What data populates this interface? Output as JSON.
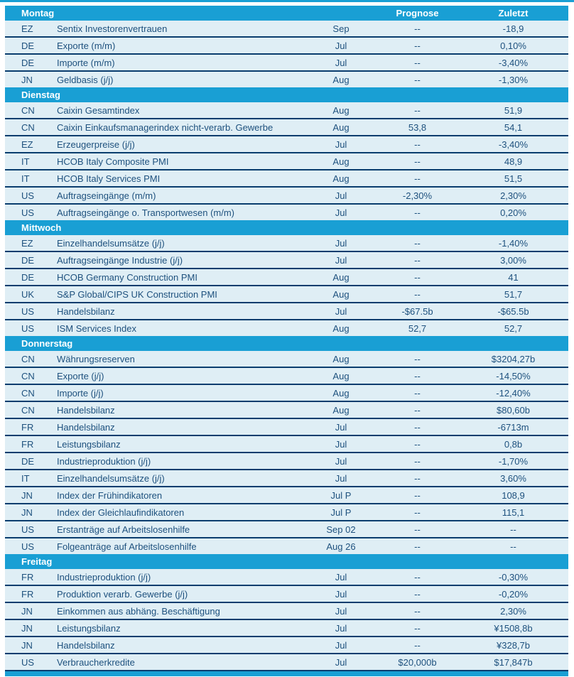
{
  "colors": {
    "accent_cyan": "#199fd4",
    "row_background": "#dfeef5",
    "separator_navy": "#0a3d6e",
    "text_navy": "#1e517e",
    "header_text": "#ffffff"
  },
  "table": {
    "columns": {
      "prognose": "Prognose",
      "zuletzt": "Zuletzt"
    },
    "sections": [
      {
        "day": "Montag",
        "rows": [
          {
            "country": "EZ",
            "indicator": "Sentix Investorenvertrauen",
            "period": "Sep",
            "prognose": "--",
            "zuletzt": "-18,9"
          },
          {
            "country": "DE",
            "indicator": "Exporte (m/m)",
            "period": "Jul",
            "prognose": "--",
            "zuletzt": "0,10%"
          },
          {
            "country": "DE",
            "indicator": "Importe (m/m)",
            "period": "Jul",
            "prognose": "--",
            "zuletzt": "-3,40%"
          },
          {
            "country": "JN",
            "indicator": "Geldbasis (j/j)",
            "period": "Aug",
            "prognose": "--",
            "zuletzt": "-1,30%"
          }
        ]
      },
      {
        "day": "Dienstag",
        "rows": [
          {
            "country": "CN",
            "indicator": "Caixin Gesamtindex",
            "period": "Aug",
            "prognose": "--",
            "zuletzt": "51,9"
          },
          {
            "country": "CN",
            "indicator": "Caixin Einkaufsmanagerindex nicht-verarb. Gewerbe",
            "period": "Aug",
            "prognose": "53,8",
            "zuletzt": "54,1"
          },
          {
            "country": "EZ",
            "indicator": "Erzeugerpreise (j/j)",
            "period": "Jul",
            "prognose": "--",
            "zuletzt": "-3,40%"
          },
          {
            "country": "IT",
            "indicator": "HCOB Italy Composite PMI",
            "period": "Aug",
            "prognose": "--",
            "zuletzt": "48,9"
          },
          {
            "country": "IT",
            "indicator": "HCOB Italy Services PMI",
            "period": "Aug",
            "prognose": "--",
            "zuletzt": "51,5"
          },
          {
            "country": "US",
            "indicator": "Auftragseingänge (m/m)",
            "period": "Jul",
            "prognose": "-2,30%",
            "zuletzt": "2,30%"
          },
          {
            "country": "US",
            "indicator": "Auftragseingänge o. Transportwesen (m/m)",
            "period": "Jul",
            "prognose": "--",
            "zuletzt": "0,20%"
          }
        ]
      },
      {
        "day": "Mittwoch",
        "rows": [
          {
            "country": "EZ",
            "indicator": "Einzelhandelsumsätze (j/j)",
            "period": "Jul",
            "prognose": "--",
            "zuletzt": "-1,40%"
          },
          {
            "country": "DE",
            "indicator": "Auftragseingänge Industrie (j/j)",
            "period": "Jul",
            "prognose": "--",
            "zuletzt": "3,00%"
          },
          {
            "country": "DE",
            "indicator": "HCOB Germany Construction PMI",
            "period": "Aug",
            "prognose": "--",
            "zuletzt": "41"
          },
          {
            "country": "UK",
            "indicator": "S&P Global/CIPS UK Construction PMI",
            "period": "Aug",
            "prognose": "--",
            "zuletzt": "51,7"
          },
          {
            "country": "US",
            "indicator": "Handelsbilanz",
            "period": "Jul",
            "prognose": "-$67.5b",
            "zuletzt": "-$65.5b"
          },
          {
            "country": "US",
            "indicator": "ISM Services Index",
            "period": "Aug",
            "prognose": "52,7",
            "zuletzt": "52,7"
          }
        ]
      },
      {
        "day": "Donnerstag",
        "rows": [
          {
            "country": "CN",
            "indicator": "Währungsreserven",
            "period": "Aug",
            "prognose": "--",
            "zuletzt": "$3204,27b"
          },
          {
            "country": "CN",
            "indicator": "Exporte (j/j)",
            "period": "Aug",
            "prognose": "--",
            "zuletzt": "-14,50%"
          },
          {
            "country": "CN",
            "indicator": "Importe (j/j)",
            "period": "Aug",
            "prognose": "--",
            "zuletzt": "-12,40%"
          },
          {
            "country": "CN",
            "indicator": "Handelsbilanz",
            "period": "Aug",
            "prognose": "--",
            "zuletzt": "$80,60b"
          },
          {
            "country": "FR",
            "indicator": "Handelsbilanz",
            "period": "Jul",
            "prognose": "--",
            "zuletzt": "-6713m"
          },
          {
            "country": "FR",
            "indicator": "Leistungsbilanz",
            "period": "Jul",
            "prognose": "--",
            "zuletzt": "0,8b"
          },
          {
            "country": "DE",
            "indicator": "Industrieproduktion (j/j)",
            "period": "Jul",
            "prognose": "--",
            "zuletzt": "-1,70%"
          },
          {
            "country": "IT",
            "indicator": "Einzelhandelsumsätze (j/j)",
            "period": "Jul",
            "prognose": "--",
            "zuletzt": "3,60%"
          },
          {
            "country": "JN",
            "indicator": "Index der Frühindikatoren",
            "period": "Jul P",
            "prognose": "--",
            "zuletzt": "108,9"
          },
          {
            "country": "JN",
            "indicator": "Index der Gleichlaufindikatoren",
            "period": "Jul P",
            "prognose": "--",
            "zuletzt": "115,1"
          },
          {
            "country": "US",
            "indicator": "Erstanträge auf Arbeitslosenhilfe",
            "period": "Sep 02",
            "prognose": "--",
            "zuletzt": "--"
          },
          {
            "country": "US",
            "indicator": "Folgeanträge auf Arbeitslosenhilfe",
            "period": "Aug 26",
            "prognose": "--",
            "zuletzt": "--"
          }
        ]
      },
      {
        "day": "Freitag",
        "rows": [
          {
            "country": "FR",
            "indicator": "Industrieproduktion (j/j)",
            "period": "Jul",
            "prognose": "--",
            "zuletzt": "-0,30%"
          },
          {
            "country": "FR",
            "indicator": "Produktion verarb. Gewerbe (j/j)",
            "period": "Jul",
            "prognose": "--",
            "zuletzt": "-0,20%"
          },
          {
            "country": "JN",
            "indicator": "Einkommen aus abhäng. Beschäftigung",
            "period": "Jul",
            "prognose": "--",
            "zuletzt": "2,30%"
          },
          {
            "country": "JN",
            "indicator": "Leistungsbilanz",
            "period": "Jul",
            "prognose": "--",
            "zuletzt": "¥1508,8b"
          },
          {
            "country": "JN",
            "indicator": "Handelsbilanz",
            "period": "Jul",
            "prognose": "--",
            "zuletzt": "¥328,7b"
          },
          {
            "country": "US",
            "indicator": "Verbraucherkredite",
            "period": "Jul",
            "prognose": "$20,000b",
            "zuletzt": "$17,847b"
          }
        ]
      }
    ]
  }
}
